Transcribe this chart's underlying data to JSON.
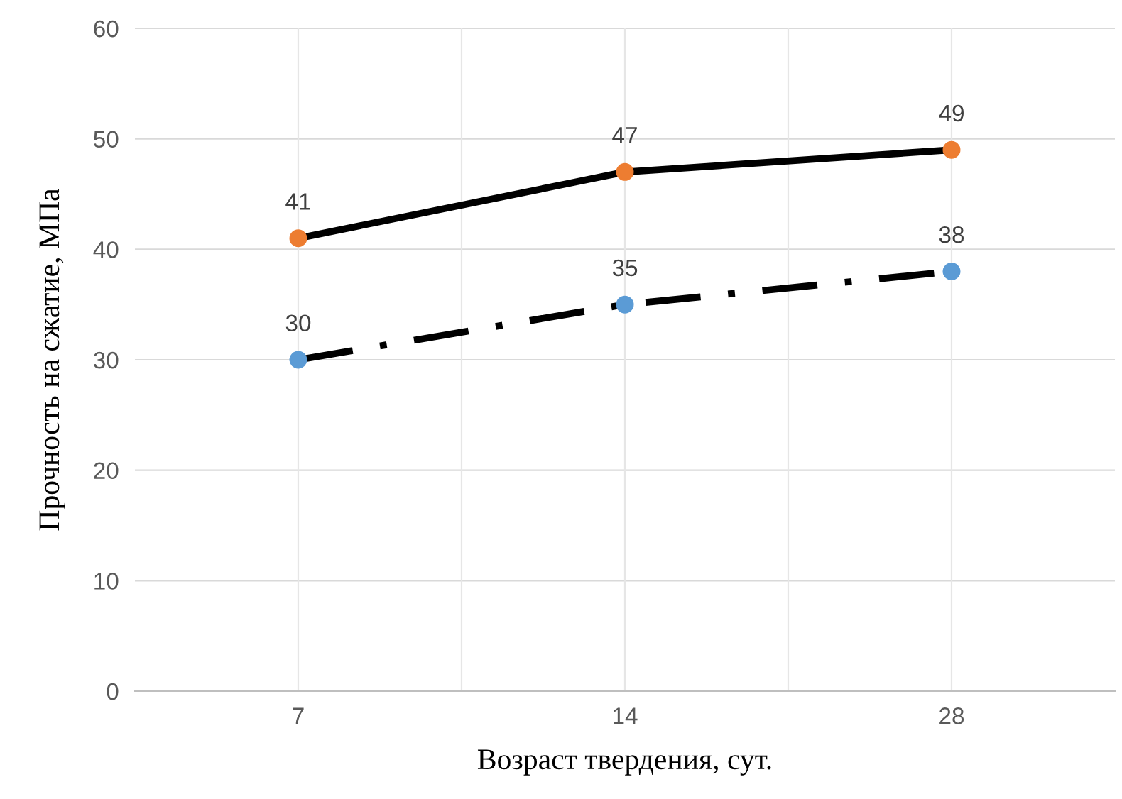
{
  "chart_data": {
    "type": "line",
    "xlabel": "Возраст твердения, сут.",
    "ylabel": "Прочность на сжатие, МПа",
    "categories": [
      "7",
      "14",
      "28"
    ],
    "series": [
      {
        "color": "#ed7d31",
        "values": [
          41,
          47,
          49
        ],
        "line_style": "solid"
      },
      {
        "color": "#5b9bd5",
        "values": [
          30,
          35,
          38
        ],
        "line_style": "dashed"
      }
    ],
    "ylim": [
      0,
      60
    ],
    "yticks": [
      0,
      10,
      20,
      30,
      40,
      50,
      60
    ],
    "grid": true,
    "data_labels": true,
    "marker": "circle"
  }
}
